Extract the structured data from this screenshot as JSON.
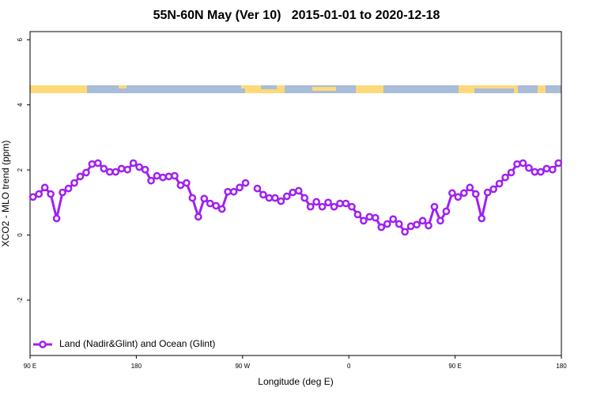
{
  "chart_data": {
    "type": "line",
    "title": "55N-60N May (Ver 10)   2015-01-01 to 2020-12-18",
    "xlabel": "Longitude (deg E)",
    "ylabel": "XCO2 - MLO trend (ppm)",
    "xlim": [
      90,
      540
    ],
    "ylim": [
      -3.7,
      6.25
    ],
    "xticks": [
      {
        "value": 90,
        "label": "90 E"
      },
      180,
      {
        "value": 270,
        "label": "90 W"
      },
      {
        "value": 360,
        "label": "0"
      },
      {
        "value": 450,
        "label": "90 E"
      },
      {
        "value": 540,
        "label": "180"
      }
    ],
    "yticks": [
      -2,
      0,
      2,
      4,
      6
    ],
    "legend": "bottom-left",
    "x": [
      92.5,
      97.5,
      102.5,
      107.5,
      112.5,
      117.5,
      122.5,
      127.5,
      132.5,
      137.5,
      142.5,
      147.5,
      152.5,
      157.5,
      162.5,
      167.5,
      172.5,
      177.5,
      182.5,
      187.5,
      192.5,
      197.5,
      202.5,
      207.5,
      212.5,
      217.5,
      222.5,
      227.5,
      232.5,
      237.5,
      242.5,
      247.5,
      252.5,
      257.5,
      262.5,
      267.5,
      272.5,
      277.5,
      282.5,
      287.5,
      292.5,
      297.5,
      302.5,
      307.5,
      312.5,
      317.5,
      322.5,
      327.5,
      332.5,
      337.5,
      342.5,
      347.5,
      352.5,
      357.5,
      362.5,
      367.5,
      372.5,
      377.5,
      382.5,
      387.5,
      392.5,
      397.5,
      402.5,
      407.5,
      412.5,
      417.5,
      422.5,
      427.5,
      432.5,
      437.5,
      442.5,
      447.5,
      452.5,
      457.5,
      462.5,
      467.5,
      472.5,
      477.5,
      482.5,
      487.5,
      492.5,
      497.5,
      502.5,
      507.5,
      512.5,
      517.5,
      522.5,
      527.5,
      532.5,
      537.5
    ],
    "series": [
      {
        "name": "Land (Nadir&Glint) and Ocean (Glint)",
        "color": "#a020f0",
        "values": [
          1.17,
          1.26,
          1.46,
          1.26,
          0.51,
          1.31,
          1.43,
          1.6,
          1.8,
          1.92,
          2.18,
          2.21,
          2.04,
          1.94,
          1.94,
          2.04,
          2.01,
          2.21,
          2.09,
          2.01,
          1.67,
          1.82,
          1.77,
          1.8,
          1.82,
          1.53,
          1.6,
          1.14,
          0.56,
          1.12,
          0.97,
          0.9,
          0.8,
          1.33,
          1.33,
          1.46,
          1.6,
          null,
          1.43,
          1.24,
          1.14,
          1.14,
          1.04,
          1.19,
          1.31,
          1.36,
          1.14,
          0.87,
          1.02,
          0.87,
          1.0,
          0.87,
          0.97,
          0.97,
          0.87,
          0.63,
          0.44,
          0.56,
          0.53,
          0.24,
          0.34,
          0.49,
          0.34,
          0.1,
          0.27,
          0.32,
          0.44,
          0.29,
          0.87,
          0.44,
          0.73,
          1.29,
          1.17,
          1.29,
          1.46,
          1.26,
          0.51,
          1.31,
          1.41,
          1.58,
          1.77,
          1.92,
          2.18,
          2.21,
          2.06,
          1.94,
          1.94,
          2.04,
          2.01,
          2.21
        ]
      }
    ]
  }
}
